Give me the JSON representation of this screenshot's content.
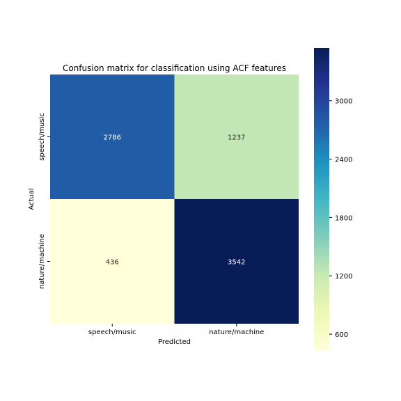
{
  "chart_data": {
    "type": "heatmap",
    "title": "Confusion matrix for classification using ACF features",
    "xlabel": "Predicted",
    "ylabel": "Actual",
    "x_categories": [
      "speech/music",
      "nature/machine"
    ],
    "y_categories": [
      "speech/music",
      "nature/machine"
    ],
    "values": [
      [
        2786,
        1237
      ],
      [
        436,
        3542
      ]
    ],
    "colormap": "YlGnBu",
    "colorbar": {
      "range": [
        436,
        3542
      ],
      "ticks": [
        600,
        1200,
        1800,
        2400,
        3000
      ],
      "tick_labels": [
        "600",
        "1200",
        "1800",
        "2400",
        "3000"
      ]
    },
    "grid": false,
    "legend": "colorbar right"
  }
}
